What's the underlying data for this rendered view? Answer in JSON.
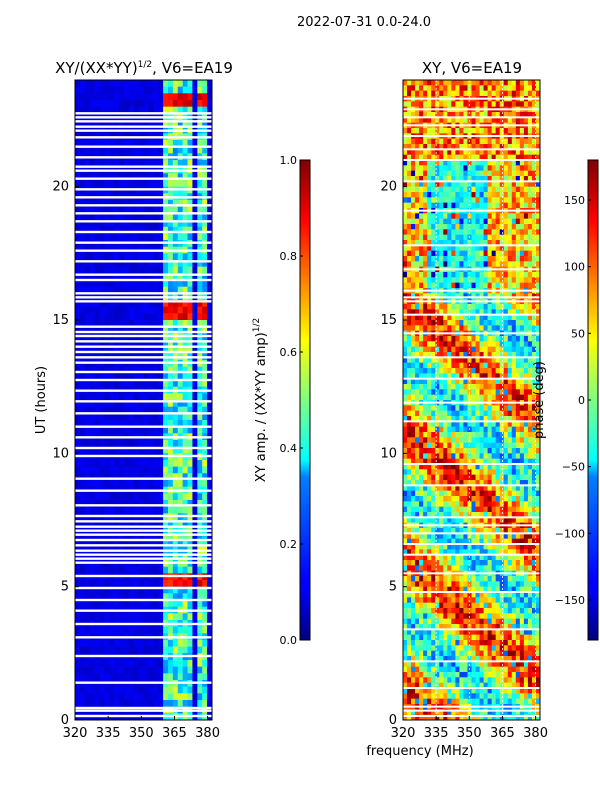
{
  "figure": {
    "suptitle": "2022-07-31 0.0-24.0",
    "shared_xlabel": "frequency (MHz)"
  },
  "chart_data": [
    {
      "type": "heatmap",
      "title_main": "XY/(XX*YY)",
      "title_sup": "1/2",
      "title_tail": ", V6=EA19",
      "xlabel": "",
      "ylabel": "UT (hours)",
      "xlim": [
        320,
        382
      ],
      "ylim": [
        0,
        24
      ],
      "xticks": [
        320,
        335,
        350,
        365,
        380
      ],
      "yticks": [
        0,
        5,
        10,
        15,
        20
      ],
      "active_bands_mhz": [
        [
          359.8,
          364.2
        ],
        [
          364.8,
          369.2
        ],
        [
          369.8,
          374.2
        ],
        [
          374.8,
          379.2
        ]
      ],
      "bright_rows_ut": [
        [
          15.1,
          15.65
        ],
        [
          4.95,
          5.45
        ],
        [
          22.9,
          23.4
        ]
      ],
      "flagged_rows_ut": [
        0.15,
        0.35,
        0.45,
        1.4,
        2.4,
        3.1,
        3.6,
        4.1,
        4.5,
        4.95,
        5.4,
        5.9,
        6.05,
        6.2,
        6.35,
        6.55,
        6.75,
        6.95,
        7.1,
        7.25,
        7.45,
        7.65,
        8.05,
        8.6,
        9.05,
        9.9,
        10.2,
        10.6,
        11.0,
        11.5,
        11.95,
        12.35,
        12.75,
        13.05,
        13.4,
        13.6,
        13.8,
        14.0,
        14.2,
        14.4,
        14.55,
        14.75,
        15.7,
        15.85,
        16.0,
        16.5,
        16.7,
        17.2,
        17.6,
        17.9,
        18.3,
        18.7,
        19.0,
        19.3,
        19.6,
        19.9,
        20.3,
        20.6,
        20.75,
        21.1,
        21.5,
        21.85,
        22.1,
        22.25,
        22.45,
        22.6,
        22.75
      ],
      "colorbar": {
        "label_main": "XY amp. / (XX*YY amp)",
        "label_sup": "1/2",
        "range": [
          0.0,
          1.0
        ],
        "ticks": [
          "0.0",
          "0.2",
          "0.4",
          "0.6",
          "0.8",
          "1.0"
        ],
        "tick_values": [
          0.0,
          0.2,
          0.4,
          0.6,
          0.8,
          1.0
        ]
      }
    },
    {
      "type": "heatmap",
      "title": "XY, V6=EA19",
      "xlabel": "frequency (MHz)",
      "ylabel": "",
      "xlim": [
        320,
        382
      ],
      "ylim": [
        0,
        24
      ],
      "xticks": [
        320,
        335,
        350,
        365,
        380
      ],
      "yticks": [
        0,
        5,
        10,
        15,
        20
      ],
      "gridlines_mhz": [
        335,
        350,
        365,
        380
      ],
      "flagged_rows_ut": [
        0.15,
        0.35,
        0.5,
        1.2,
        2.2,
        3.4,
        4.8,
        5.5,
        6.2,
        6.6,
        7.0,
        7.3,
        7.6,
        8.8,
        9.6,
        11.2,
        11.9,
        12.8,
        13.6,
        14.5,
        15.2,
        15.7,
        15.85,
        16.1,
        16.9,
        17.8,
        19.1,
        20.2,
        21.0,
        21.4,
        21.9,
        22.3,
        22.6,
        22.9,
        23.3
      ],
      "colorbar": {
        "label": "phase (deg)",
        "range": [
          -180,
          180
        ],
        "ticks": [
          "−150",
          "−100",
          "−50",
          "0",
          "50",
          "100",
          "150"
        ],
        "tick_values": [
          -150,
          -100,
          -50,
          0,
          50,
          100,
          150
        ]
      }
    }
  ]
}
